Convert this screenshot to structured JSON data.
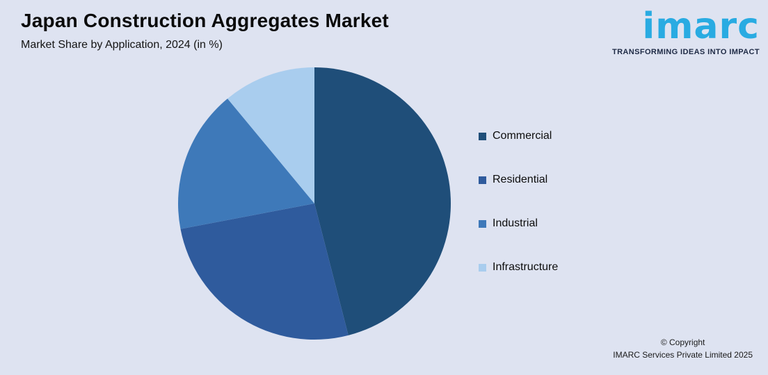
{
  "header": {
    "title": "Japan Construction Aggregates Market",
    "subtitle": "Market Share by Application, 2024 (in %)"
  },
  "logo": {
    "text": "imarc",
    "tagline": "TRANSFORMING IDEAS INTO IMPACT",
    "text_color": "#29abe2",
    "tagline_color": "#1e2a45"
  },
  "chart_data": {
    "type": "pie",
    "title": "Japan Construction Aggregates Market",
    "subtitle": "Market Share by Application, 2024 (in %)",
    "labels": [
      "Commercial",
      "Residential",
      "Industrial",
      "Infrastructure"
    ],
    "values": [
      46,
      26,
      17,
      11
    ],
    "colors": [
      "#1f4e79",
      "#2f5b9d",
      "#3e79b9",
      "#a9cdee"
    ],
    "start_angle_deg": 0,
    "direction": "clockwise",
    "legend_position": "right",
    "background_color": "#dee3f1"
  },
  "footer": {
    "line1": "© Copyright",
    "line2": "IMARC Services Private Limited 2025"
  }
}
